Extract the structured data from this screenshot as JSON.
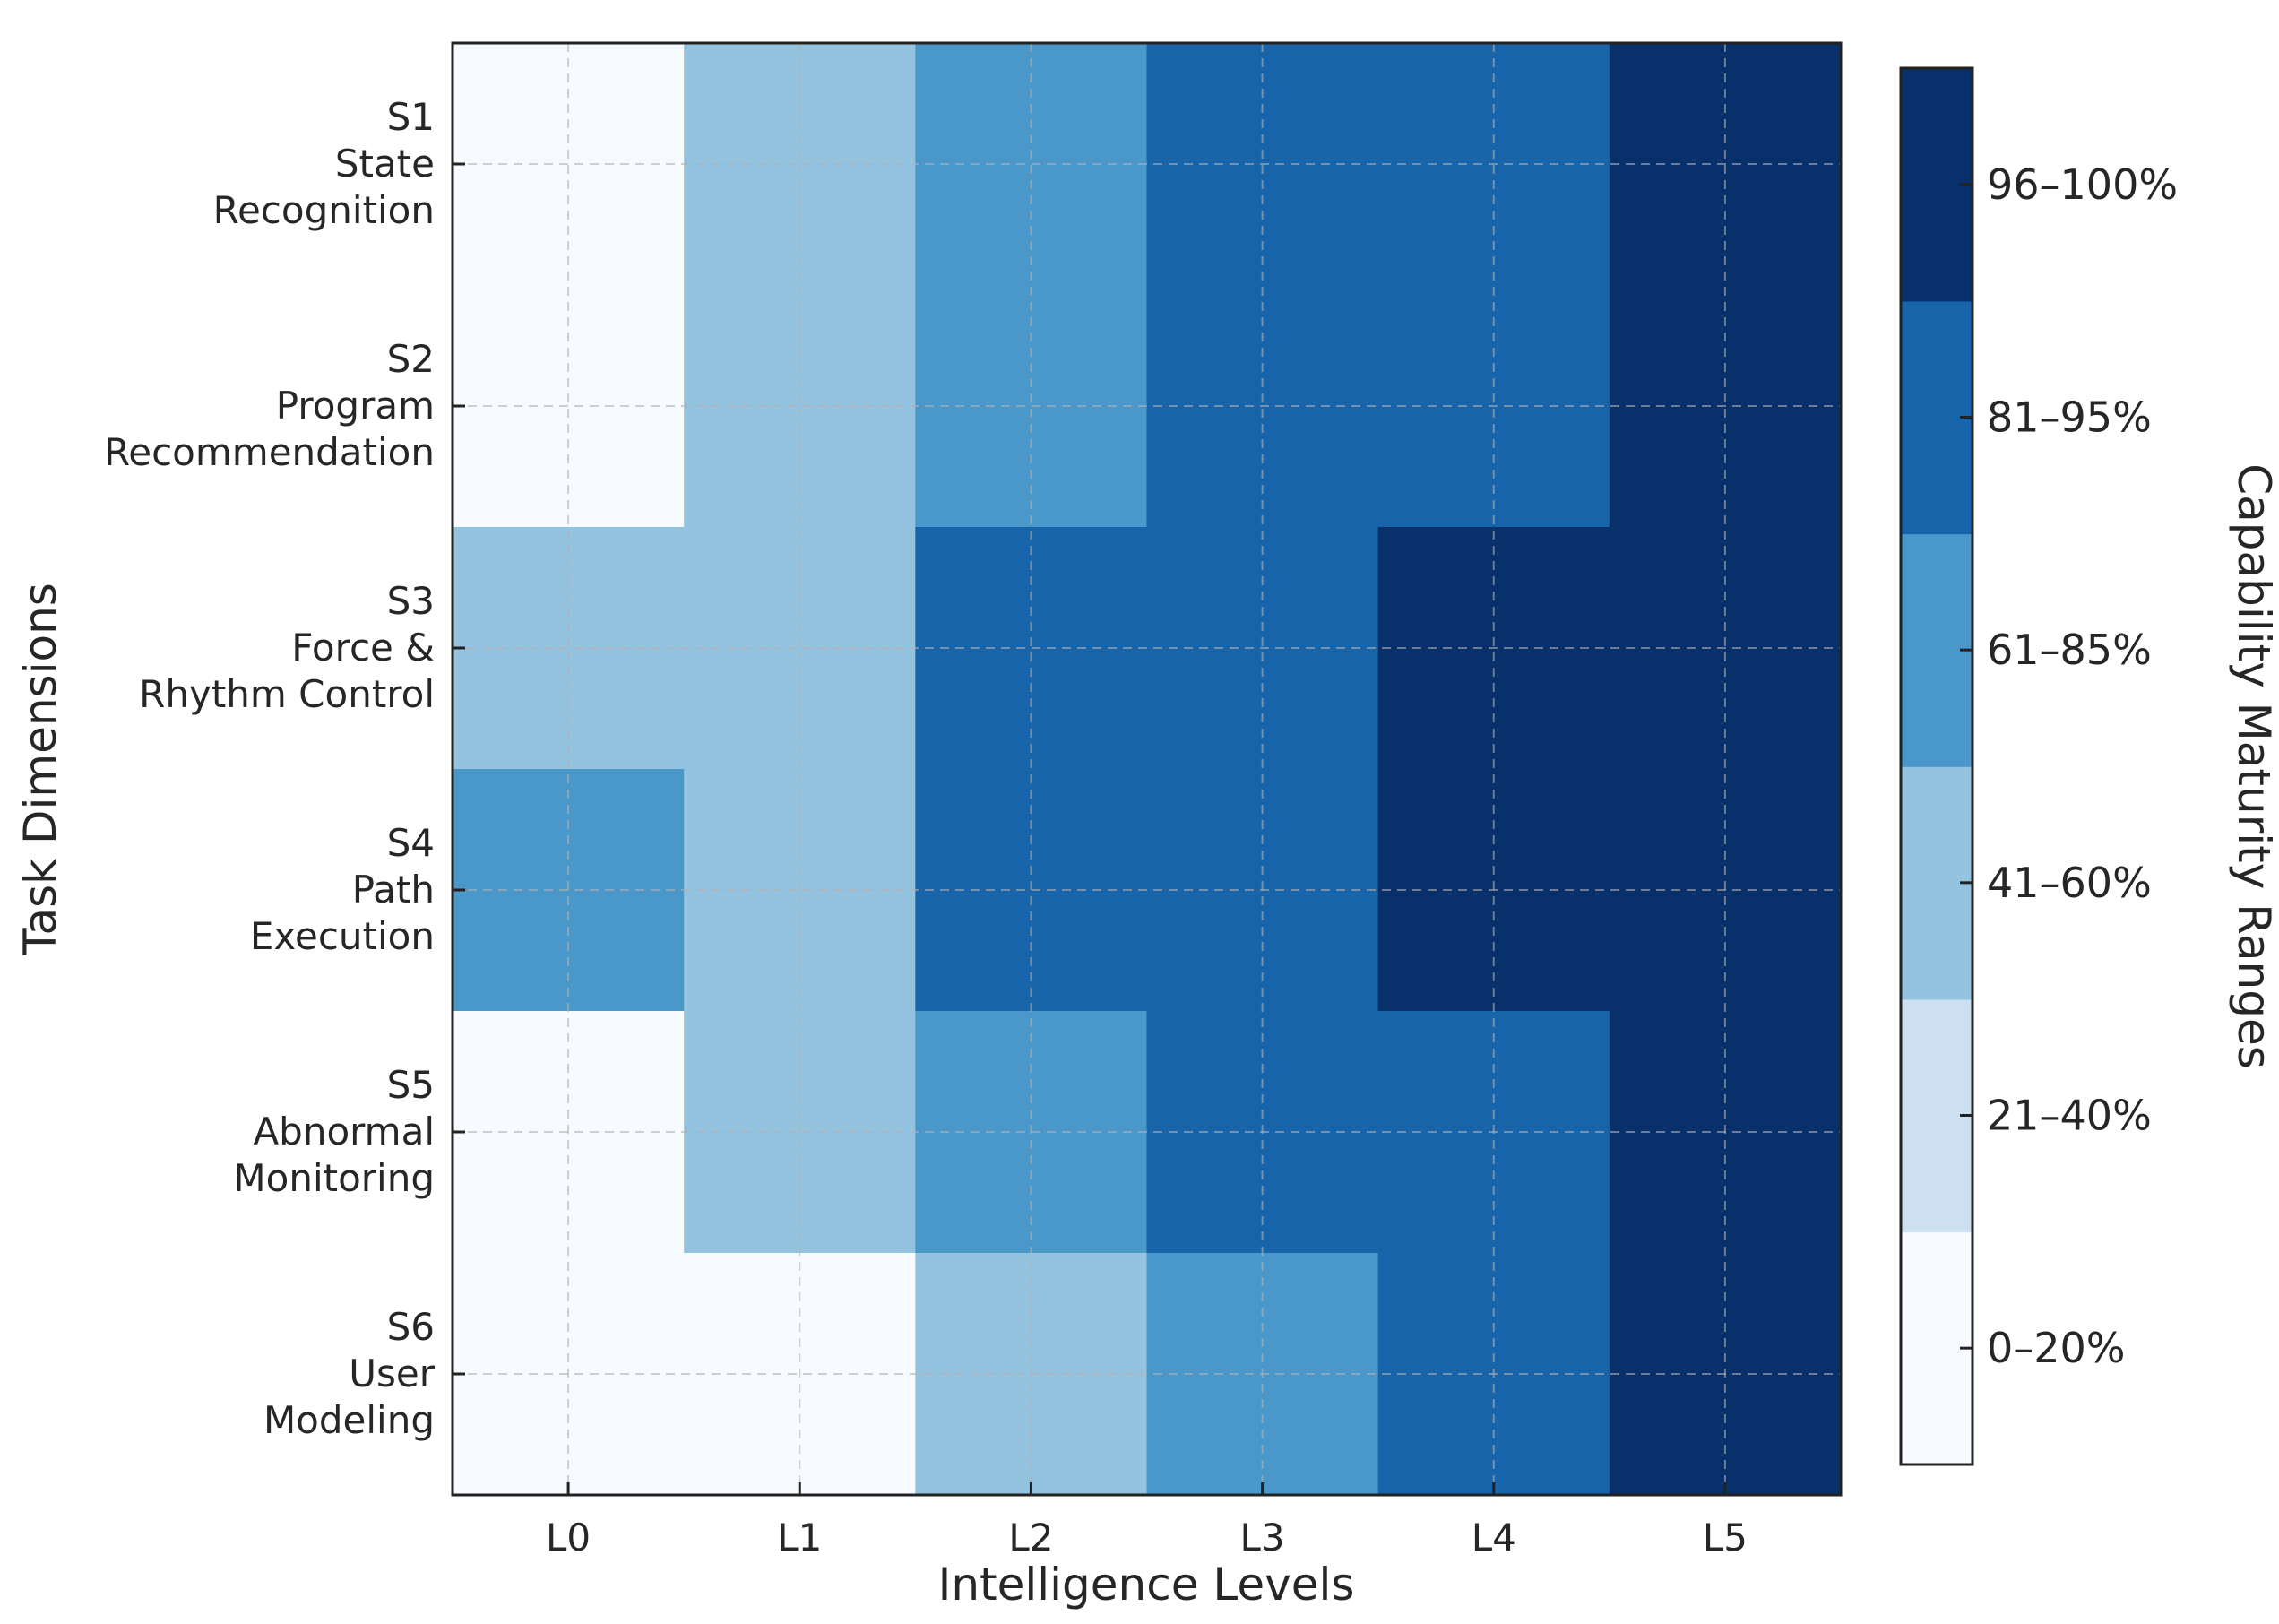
{
  "chart_data": {
    "type": "heatmap",
    "title": "",
    "xlabel": "Intelligence Levels",
    "ylabel": "Task Dimensions",
    "x_categories": [
      "L0",
      "L1",
      "L2",
      "L3",
      "L4",
      "L5"
    ],
    "y_categories": [
      [
        "S1",
        "State",
        "Recognition"
      ],
      [
        "S2",
        "Program",
        "Recommendation"
      ],
      [
        "S3",
        "Force &",
        "Rhythm Control"
      ],
      [
        "S4",
        "Path",
        "Execution"
      ],
      [
        "S5",
        "Abnormal",
        "Monitoring"
      ],
      [
        "S6",
        "User",
        "Modeling"
      ]
    ],
    "values": [
      [
        0,
        2,
        3,
        4,
        4,
        5
      ],
      [
        0,
        2,
        3,
        4,
        4,
        5
      ],
      [
        2,
        2,
        4,
        4,
        5,
        5
      ],
      [
        3,
        2,
        4,
        4,
        5,
        5
      ],
      [
        0,
        2,
        3,
        4,
        4,
        5
      ],
      [
        0,
        0,
        2,
        3,
        4,
        5
      ]
    ],
    "grid": true,
    "colorbar": {
      "title": "Capability Maturity Ranges",
      "labels": [
        "0–20%",
        "21–40%",
        "41–60%",
        "61–85%",
        "81–95%",
        "96–100%"
      ],
      "colors": [
        "#f7fbff",
        "#cde0f1",
        "#93c3df",
        "#4a98c9",
        "#1764ab",
        "#08306b"
      ]
    }
  }
}
